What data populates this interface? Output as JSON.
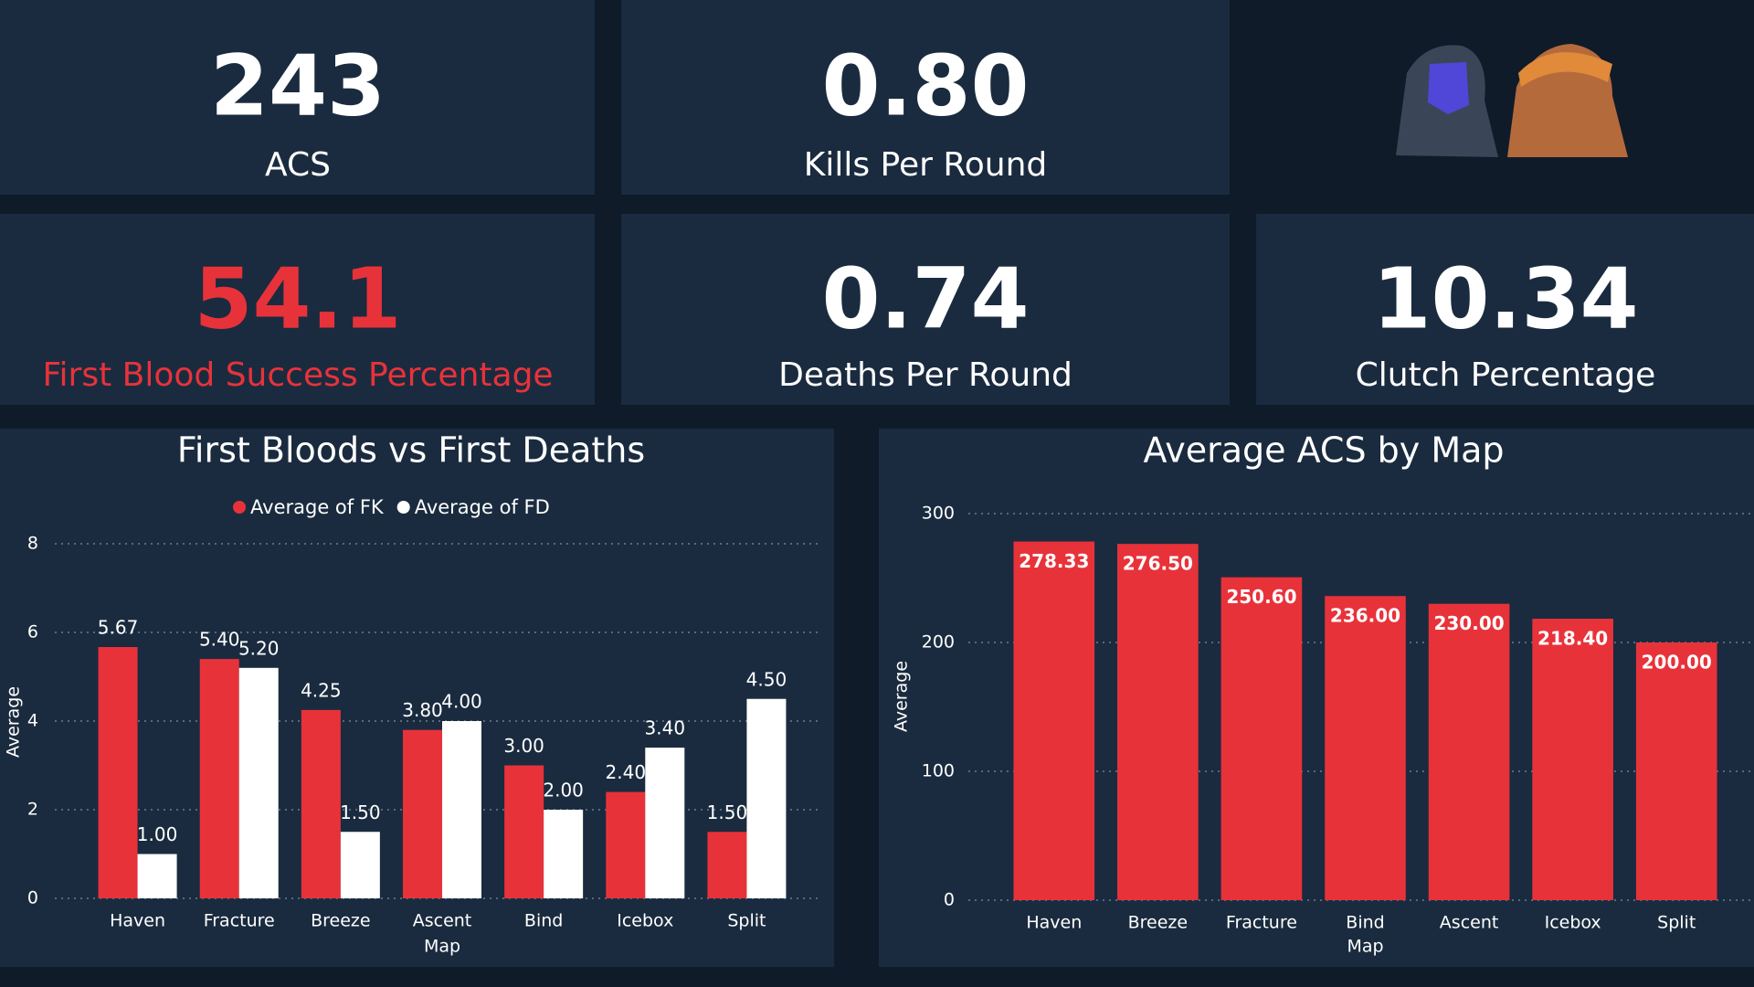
{
  "kpis": [
    {
      "value": "243",
      "label": "ACS",
      "color": "#ffffff"
    },
    {
      "value": "0.80",
      "label": "Kills Per Round",
      "color": "#ffffff"
    },
    {
      "value": "54.1",
      "label": "First Blood Success Percentage",
      "color": "#e8323a"
    },
    {
      "value": "0.74",
      "label": "Deaths Per Round",
      "color": "#ffffff"
    },
    {
      "value": "10.34",
      "label": "Clutch Percentage",
      "color": "#ffffff"
    }
  ],
  "chart_data": [
    {
      "type": "bar",
      "title": "First Bloods vs First Deaths",
      "x_label": "Map",
      "y_label": "Average",
      "categories": [
        "Haven",
        "Fracture",
        "Breeze",
        "Ascent",
        "Bind",
        "Icebox",
        "Split"
      ],
      "series": [
        {
          "name": "Average of FK",
          "color": "#e8323a",
          "values": [
            5.67,
            5.4,
            4.25,
            3.8,
            3.0,
            2.4,
            1.5
          ],
          "value_labels": [
            "5.67",
            "5.40",
            "4.25",
            "3.80",
            "3.00",
            "2.40",
            "1.50"
          ]
        },
        {
          "name": "Average of FD",
          "color": "#ffffff",
          "values": [
            1.0,
            5.2,
            1.5,
            4.0,
            2.0,
            3.4,
            4.5
          ],
          "value_labels": [
            "1.00",
            "5.20",
            "1.50",
            "4.00",
            "2.00",
            "3.40",
            "4.50"
          ]
        }
      ],
      "ylim": [
        0,
        8
      ],
      "yticks": [
        0,
        2,
        4,
        6,
        8
      ],
      "grid": true,
      "legend": "top"
    },
    {
      "type": "bar",
      "title": "Average ACS by Map",
      "x_label": "Map",
      "y_label": "Average",
      "categories": [
        "Haven",
        "Breeze",
        "Fracture",
        "Bind",
        "Ascent",
        "Icebox",
        "Split"
      ],
      "values": [
        278.33,
        276.5,
        250.6,
        236.0,
        230.0,
        218.4,
        200.0
      ],
      "value_labels": [
        "278.33",
        "276.50",
        "250.60",
        "236.00",
        "230.00",
        "218.40",
        "200.00"
      ],
      "color": "#e8323a",
      "ylim": [
        0,
        300
      ],
      "yticks": [
        0,
        100,
        200,
        300
      ],
      "grid": true
    }
  ]
}
